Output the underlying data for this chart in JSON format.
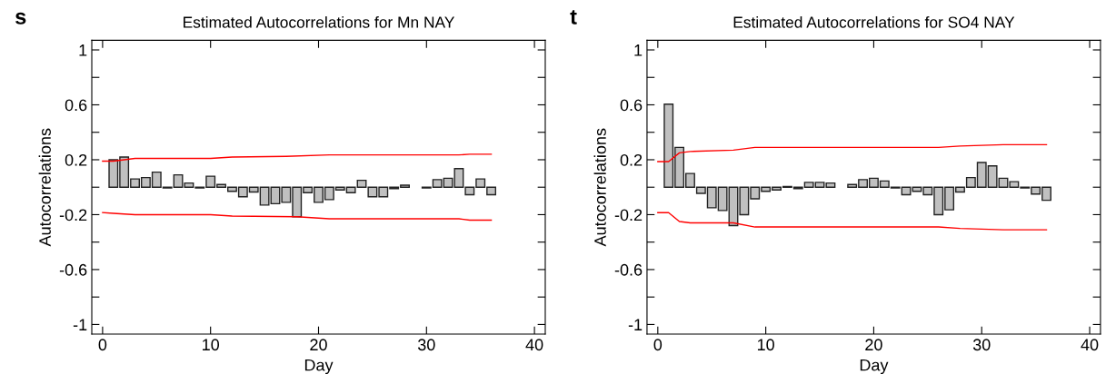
{
  "chart_data": [
    {
      "type": "bar",
      "title": "Estimated Autocorrelations for Mn NAY",
      "xlabel": "Day",
      "ylabel": "Autocorrelations",
      "annotations": [
        "s"
      ],
      "x": [
        1,
        2,
        3,
        4,
        5,
        6,
        7,
        8,
        9,
        10,
        11,
        12,
        13,
        14,
        15,
        16,
        17,
        18,
        19,
        20,
        21,
        22,
        23,
        24,
        25,
        26,
        27,
        28,
        29,
        30,
        31,
        32,
        33,
        34,
        35,
        36
      ],
      "series": [
        {
          "color": "#c0c0c0",
          "values": [
            0.2,
            0.22,
            0.06,
            0.07,
            0.11,
            -0.005,
            0.09,
            0.03,
            -0.005,
            0.08,
            0.02,
            -0.03,
            -0.07,
            -0.035,
            -0.13,
            -0.12,
            -0.11,
            -0.215,
            -0.04,
            -0.11,
            -0.09,
            -0.02,
            -0.04,
            0.05,
            -0.07,
            -0.07,
            -0.01,
            0.015,
            null,
            -0.005,
            0.055,
            0.065,
            0.135,
            -0.055,
            0.06,
            -0.055
          ]
        },
        {
          "type": "line",
          "color": "#ff0000",
          "x": [
            0,
            1,
            3,
            10,
            12,
            17,
            21,
            33,
            34,
            36
          ],
          "values": [
            0.19,
            0.19,
            0.21,
            0.21,
            0.22,
            0.225,
            0.235,
            0.235,
            0.24,
            0.24
          ]
        },
        {
          "type": "line",
          "color": "#ff0000",
          "x": [
            0,
            1,
            3,
            10,
            12,
            18,
            21,
            33,
            34,
            36
          ],
          "values": [
            -0.185,
            -0.19,
            -0.2,
            -0.2,
            -0.21,
            -0.215,
            -0.23,
            -0.23,
            -0.24,
            -0.24
          ]
        }
      ],
      "xlim": [
        -1,
        41
      ],
      "xticks": [
        0,
        10,
        20,
        30,
        40
      ],
      "ylim": [
        -1.07,
        1.07
      ],
      "yticks": [
        {
          "value": -1,
          "label": "-1"
        },
        {
          "value": -0.8,
          "label": null
        },
        {
          "value": -0.6,
          "label": "-0.6"
        },
        {
          "value": -0.4,
          "label": null
        },
        {
          "value": -0.2,
          "label": "-0.2"
        },
        {
          "value": 0,
          "label": null
        },
        {
          "value": 0.2,
          "label": "0.2"
        },
        {
          "value": 0.4,
          "label": null
        },
        {
          "value": 0.6,
          "label": "0.6"
        },
        {
          "value": 0.8,
          "label": null
        },
        {
          "value": 1,
          "label": "1"
        }
      ],
      "grid": false,
      "legend": false
    },
    {
      "type": "bar",
      "title": "Estimated Autocorrelations for SO4 NAY",
      "xlabel": "Day",
      "ylabel": "Autocorrelations",
      "annotations": [
        "t"
      ],
      "x": [
        1,
        2,
        3,
        4,
        5,
        6,
        7,
        8,
        9,
        10,
        11,
        12,
        13,
        14,
        15,
        16,
        17,
        18,
        19,
        20,
        21,
        22,
        23,
        24,
        25,
        26,
        27,
        28,
        29,
        30,
        31,
        32,
        33,
        34,
        35,
        36
      ],
      "series": [
        {
          "color": "#c0c0c0",
          "values": [
            0.605,
            0.29,
            0.1,
            -0.045,
            -0.15,
            -0.17,
            -0.28,
            -0.2,
            -0.085,
            -0.03,
            -0.02,
            0.005,
            -0.01,
            0.035,
            0.035,
            0.03,
            null,
            0.02,
            0.055,
            0.065,
            0.045,
            -0.005,
            -0.055,
            -0.03,
            -0.055,
            -0.2,
            -0.165,
            -0.035,
            0.07,
            0.18,
            0.155,
            0.065,
            0.04,
            -0.005,
            -0.05,
            -0.095
          ]
        },
        {
          "type": "line",
          "color": "#ff0000",
          "x": [
            0,
            1,
            2,
            3,
            7,
            9,
            26,
            28,
            32,
            36
          ],
          "values": [
            0.187,
            0.187,
            0.25,
            0.26,
            0.27,
            0.29,
            0.29,
            0.3,
            0.31,
            0.31
          ]
        },
        {
          "type": "line",
          "color": "#ff0000",
          "x": [
            0,
            1,
            2,
            3,
            7,
            9,
            26,
            28,
            32,
            36
          ],
          "values": [
            -0.185,
            -0.185,
            -0.25,
            -0.26,
            -0.26,
            -0.29,
            -0.29,
            -0.3,
            -0.31,
            -0.31
          ]
        }
      ],
      "xlim": [
        -1,
        41
      ],
      "xticks": [
        0,
        10,
        20,
        30,
        40
      ],
      "ylim": [
        -1.07,
        1.07
      ],
      "yticks": [
        {
          "value": -1,
          "label": "-1"
        },
        {
          "value": -0.8,
          "label": null
        },
        {
          "value": -0.6,
          "label": "-0.6"
        },
        {
          "value": -0.4,
          "label": null
        },
        {
          "value": -0.2,
          "label": "-0.2"
        },
        {
          "value": 0,
          "label": null
        },
        {
          "value": 0.2,
          "label": "0.2"
        },
        {
          "value": 0.4,
          "label": null
        },
        {
          "value": 0.6,
          "label": "0.6"
        },
        {
          "value": 0.8,
          "label": null
        },
        {
          "value": 1,
          "label": "1"
        }
      ],
      "grid": false,
      "legend": false
    }
  ]
}
